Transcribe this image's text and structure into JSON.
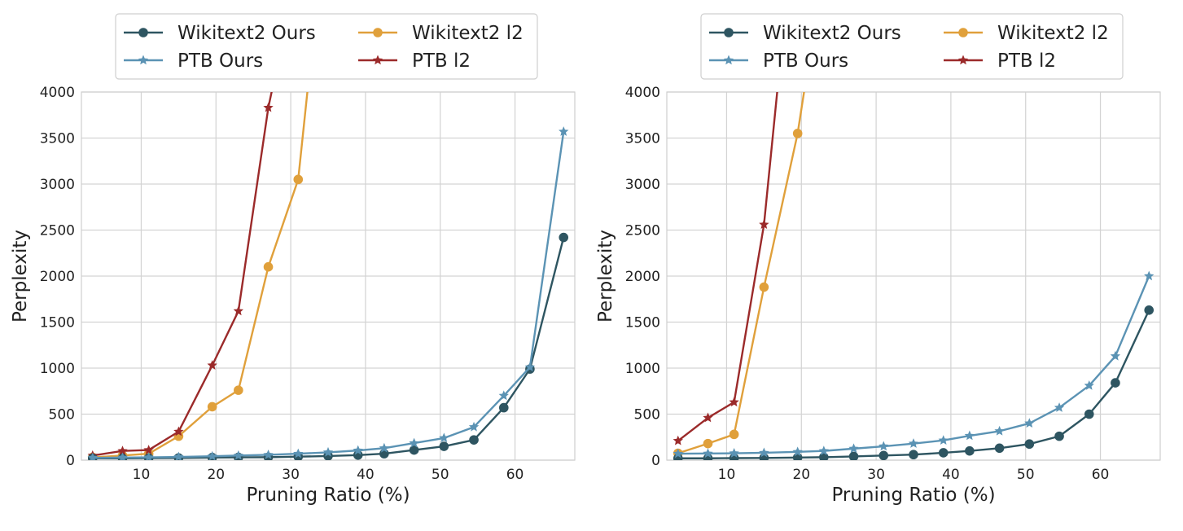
{
  "colors": {
    "wikitext2_ours": "#2e5561",
    "wikitext2_l2": "#e0a03b",
    "ptb_ours": "#5b93b4",
    "ptb_l2": "#9b2a2a",
    "grid": "#d3d3d3",
    "frame": "#cfcfcf"
  },
  "chart_data": [
    {
      "type": "line",
      "xlabel": "Pruning Ratio (%)",
      "ylabel": "Perplexity",
      "xlim": [
        2,
        68
      ],
      "ylim": [
        0,
        4000
      ],
      "xticks": [
        10,
        20,
        30,
        40,
        50,
        60
      ],
      "yticks": [
        0,
        500,
        1000,
        1500,
        2000,
        2500,
        3000,
        3500,
        4000
      ],
      "grid": true,
      "legend_position": "top-center, above plot, 2 columns",
      "series": [
        {
          "name": "Wikitext2 Ours",
          "marker": "circle",
          "color_key": "wikitext2_ours",
          "x": [
            3.5,
            7.5,
            11,
            15,
            19.5,
            23,
            27,
            31,
            35,
            39,
            42.5,
            46.5,
            50.5,
            54.5,
            58.5,
            62,
            66.5
          ],
          "y": [
            20,
            20,
            22,
            24,
            28,
            30,
            32,
            38,
            45,
            55,
            70,
            110,
            150,
            220,
            570,
            990,
            2420
          ]
        },
        {
          "name": "PTB Ours",
          "marker": "star",
          "color_key": "ptb_ours",
          "x": [
            3.5,
            7.5,
            11,
            15,
            19.5,
            23,
            27,
            31,
            35,
            39,
            42.5,
            46.5,
            50.5,
            54.5,
            58.5,
            62,
            66.5
          ],
          "y": [
            25,
            28,
            30,
            35,
            42,
            50,
            58,
            70,
            85,
            105,
            130,
            185,
            240,
            360,
            700,
            1010,
            3570
          ]
        },
        {
          "name": "Wikitext2 l2",
          "marker": "circle",
          "color_key": "wikitext2_l2",
          "x": [
            3.5,
            7.5,
            11,
            15,
            19.5,
            23,
            27,
            31,
            33
          ],
          "y": [
            30,
            50,
            70,
            260,
            580,
            760,
            2100,
            3050,
            4600
          ]
        },
        {
          "name": "PTB l2",
          "marker": "star",
          "color_key": "ptb_l2",
          "x": [
            3.5,
            7.5,
            11,
            15,
            19.5,
            23,
            27,
            29
          ],
          "y": [
            50,
            100,
            110,
            310,
            1030,
            1620,
            3830,
            4600
          ]
        }
      ]
    },
    {
      "type": "line",
      "xlabel": "Pruning Ratio (%)",
      "ylabel": "Perplexity",
      "xlim": [
        2,
        68
      ],
      "ylim": [
        0,
        4000
      ],
      "xticks": [
        10,
        20,
        30,
        40,
        50,
        60
      ],
      "yticks": [
        0,
        500,
        1000,
        1500,
        2000,
        2500,
        3000,
        3500,
        4000
      ],
      "grid": true,
      "legend_position": "top-center, above plot, 2 columns",
      "series": [
        {
          "name": "Wikitext2 Ours",
          "marker": "circle",
          "color_key": "wikitext2_ours",
          "x": [
            3.5,
            7.5,
            11,
            15,
            19.5,
            23,
            27,
            31,
            35,
            39,
            42.5,
            46.5,
            50.5,
            54.5,
            58.5,
            62,
            66.5
          ],
          "y": [
            20,
            20,
            22,
            24,
            28,
            32,
            40,
            50,
            60,
            80,
            100,
            130,
            175,
            260,
            500,
            840,
            1630
          ]
        },
        {
          "name": "PTB Ours",
          "marker": "star",
          "color_key": "ptb_ours",
          "x": [
            3.5,
            7.5,
            11,
            15,
            19.5,
            23,
            27,
            31,
            35,
            39,
            42.5,
            46.5,
            50.5,
            54.5,
            58.5,
            62,
            66.5
          ],
          "y": [
            70,
            72,
            75,
            80,
            90,
            100,
            125,
            150,
            180,
            215,
            265,
            315,
            400,
            570,
            810,
            1130,
            2000
          ]
        },
        {
          "name": "Wikitext2 l2",
          "marker": "circle",
          "color_key": "wikitext2_l2",
          "x": [
            3.5,
            7.5,
            11,
            15,
            19.5,
            21.5
          ],
          "y": [
            75,
            180,
            280,
            1880,
            3550,
            4600
          ]
        },
        {
          "name": "PTB l2",
          "marker": "star",
          "color_key": "ptb_l2",
          "x": [
            3.5,
            7.5,
            11,
            15,
            17.5
          ],
          "y": [
            210,
            460,
            630,
            2560,
            4600
          ]
        }
      ]
    }
  ],
  "legend": {
    "items": [
      "Wikitext2 Ours",
      "Wikitext2 l2",
      "PTB Ours",
      "PTB l2"
    ]
  }
}
